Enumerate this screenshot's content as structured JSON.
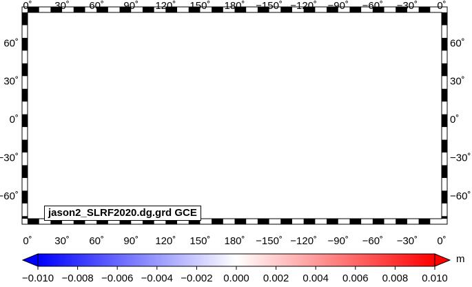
{
  "map": {
    "title": "jason2_SLRF2020.dg.grd GCE",
    "lon_tick_labels": [
      "0˚",
      "30˚",
      "60˚",
      "90˚",
      "120˚",
      "150˚",
      "180˚",
      "−150˚",
      "−120˚",
      "−90˚",
      "−60˚",
      "−30˚",
      "0˚"
    ],
    "lat_tick_labels": [
      "60˚",
      "30˚",
      "0˚",
      "−30˚",
      "−60˚"
    ],
    "lat_range": [
      -78,
      84
    ],
    "lon_range": [
      0,
      360
    ],
    "land_color": "#6f6f6f",
    "ocean_mode": "gridded anomaly field with black zero contours"
  },
  "colorbar": {
    "unit": "m",
    "min": -0.01,
    "max": 0.01,
    "tick_labels": [
      "−0.010",
      "−0.008",
      "−0.006",
      "−0.004",
      "−0.002",
      "0.000",
      "0.002",
      "0.004",
      "0.006",
      "0.008",
      "0.010"
    ],
    "color_low": "#0000ff",
    "color_mid": "#ffffff",
    "color_high": "#ff0000"
  }
}
